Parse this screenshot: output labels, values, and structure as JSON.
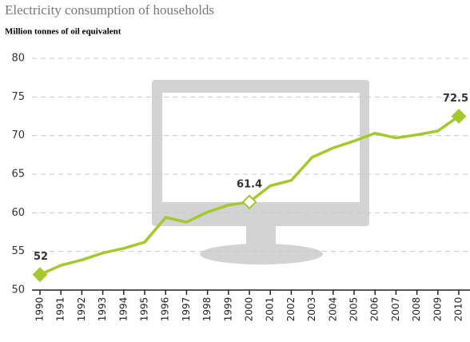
{
  "chart_data": {
    "type": "line",
    "title": "Electricity consumption of households",
    "subtitle": "Million tonnes of oil equivalent",
    "categories": [
      "1990",
      "1991",
      "1992",
      "1993",
      "1994",
      "1995",
      "1996",
      "1997",
      "1998",
      "1999",
      "2000",
      "2001",
      "2002",
      "2003",
      "2004",
      "2005",
      "2006",
      "2007",
      "2008",
      "2009",
      "2010"
    ],
    "series": [
      {
        "name": "Electricity consumption",
        "color": "#a5c82d",
        "values": [
          52,
          53.2,
          53.9,
          54.8,
          55.4,
          56.2,
          59.4,
          58.8,
          60.1,
          61.0,
          61.4,
          63.5,
          64.2,
          67.2,
          68.4,
          69.3,
          70.3,
          69.7,
          70.1,
          70.6,
          72.5
        ],
        "value_labels": [
          "52",
          null,
          null,
          null,
          null,
          null,
          null,
          null,
          null,
          null,
          "61.4",
          null,
          null,
          null,
          null,
          null,
          null,
          null,
          null,
          null,
          "72.5"
        ]
      }
    ],
    "ylim": [
      50,
      80
    ],
    "yticks": [
      50,
      55,
      60,
      65,
      70,
      75,
      80
    ],
    "grid": true
  }
}
